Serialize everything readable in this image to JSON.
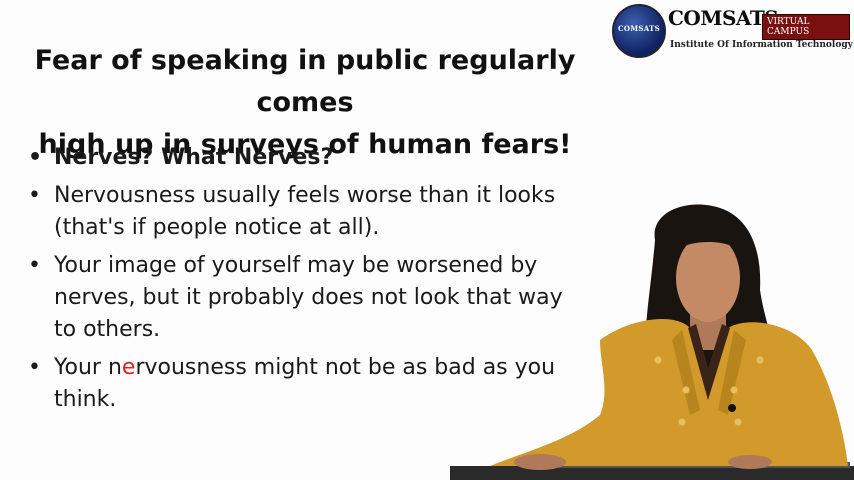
{
  "slide": {
    "title_line1": "Fear of speaking in public regularly comes",
    "title_line2": "high up in surveys of human fears!",
    "bullets": [
      "Nerves? What Nerves?",
      "Nervousness usually feels worse than it looks (that's if people notice at all).",
      "Your image of yourself may be worsened by nerves, but it probably does not look that way to others."
    ],
    "bullet4_part1": "Your n",
    "bullet4_cursor": "e",
    "bullet4_part2": "rvousness might not be as bad as you think."
  },
  "logo": {
    "emblem_text": "COMSATS",
    "name": "COMSATS",
    "badge": "VIRTUAL CAMPUS",
    "subtitle": "Institute Of Information Technology"
  },
  "colors": {
    "jacket": "#d19a2a",
    "hair": "#1a1410",
    "logo_blue": "#0e2160",
    "badge_red": "#7a1010"
  }
}
